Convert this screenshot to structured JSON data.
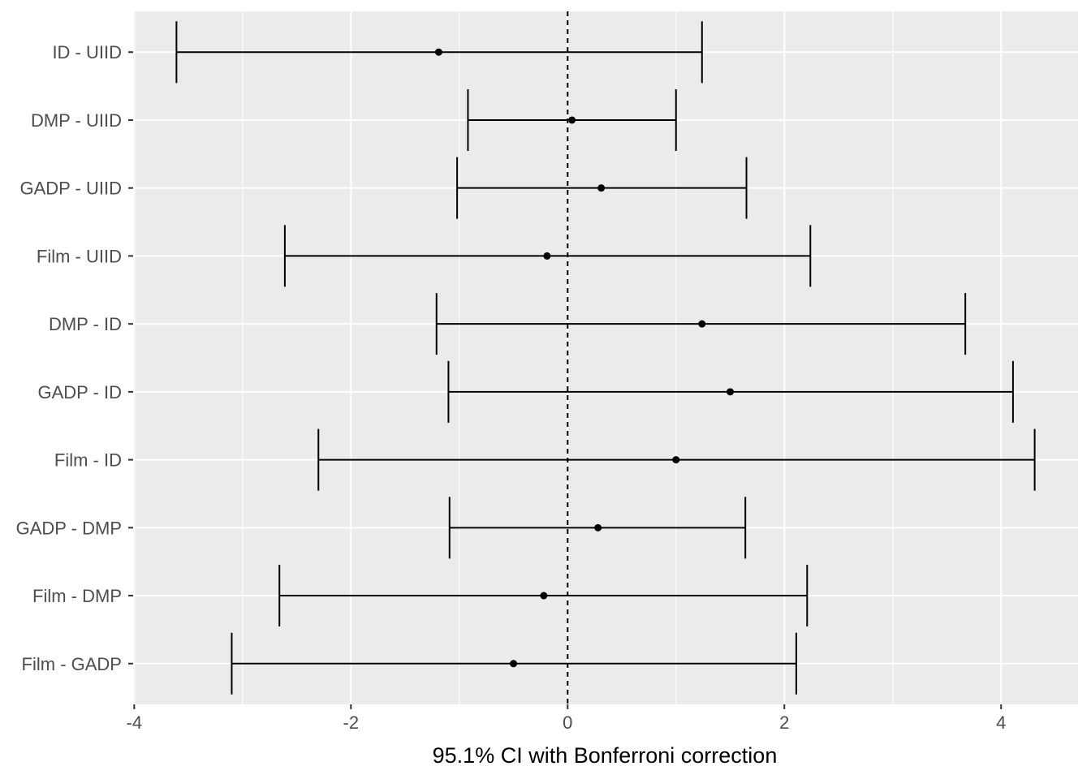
{
  "chart_data": {
    "type": "errorbar",
    "title": "",
    "xlabel": "95.1% CI with Bonferroni correction",
    "ylabel": "",
    "xlim": [
      -4.01,
      4.71
    ],
    "xticks": [
      -4,
      -2,
      0,
      2,
      4
    ],
    "xtick_labels": [
      "-4",
      "-2",
      "0",
      "2",
      "4"
    ],
    "reference_line": 0,
    "grid": true,
    "categories": [
      "ID - UIID",
      "DMP - UIID",
      "GADP - UIID",
      "Film - UIID",
      "DMP - ID",
      "GADP - ID",
      "Film - ID",
      "GADP - DMP",
      "Film - DMP",
      "Film - GADP"
    ],
    "estimate": [
      -1.19,
      0.04,
      0.31,
      -0.19,
      1.24,
      1.5,
      1.0,
      0.28,
      -0.22,
      -0.5
    ],
    "lower": [
      -3.61,
      -0.92,
      -1.02,
      -2.61,
      -1.21,
      -1.1,
      -2.3,
      -1.09,
      -2.66,
      -3.1
    ],
    "upper": [
      1.24,
      1.0,
      1.65,
      2.24,
      3.67,
      4.11,
      4.31,
      1.64,
      2.21,
      2.11
    ],
    "colors": {
      "panel": "#EBEBEB",
      "grid": "#FFFFFF",
      "mark": "#000000",
      "tick_text": "#4D4D4D"
    }
  }
}
